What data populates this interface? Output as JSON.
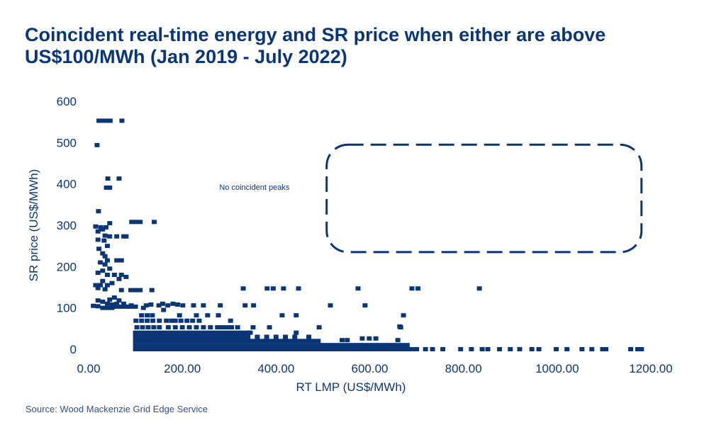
{
  "chart_data": {
    "type": "scatter",
    "title": "Coincident real-time energy and SR price when either are above US$100/MWh  (Jan 2019 - July 2022)",
    "xlabel": "RT LMP (US$/MWh)",
    "ylabel": "SR price (US$/MWh)",
    "xlim": [
      0,
      1200
    ],
    "ylim": [
      0,
      600
    ],
    "xticks": [
      "0.00",
      "200.00",
      "400.00",
      "600.00",
      "800.00",
      "1000.00",
      "1200.00"
    ],
    "xtick_values": [
      0,
      200,
      400,
      600,
      800,
      1000,
      1200
    ],
    "yticks": [
      "0",
      "100",
      "200",
      "300",
      "400",
      "500",
      "600"
    ],
    "ytick_values": [
      0,
      100,
      200,
      300,
      400,
      500,
      600
    ],
    "grid": false,
    "legend": "none",
    "marker_color": "#0a3678",
    "annotation": {
      "text": "No coincident peaks",
      "x": 285,
      "y": 393,
      "box_x": [
        508,
        1180
      ],
      "box_y": [
        235,
        495
      ],
      "box_style": "dashed-rounded"
    },
    "points": [
      [
        22,
        553
      ],
      [
        30,
        553
      ],
      [
        38,
        553
      ],
      [
        46,
        553
      ],
      [
        71,
        553
      ],
      [
        18,
        494
      ],
      [
        41,
        413
      ],
      [
        65,
        413
      ],
      [
        38,
        391
      ],
      [
        45,
        391
      ],
      [
        21,
        334
      ],
      [
        45,
        305
      ],
      [
        92,
        308
      ],
      [
        100,
        308
      ],
      [
        110,
        308
      ],
      [
        140,
        308
      ],
      [
        15,
        297
      ],
      [
        26,
        295
      ],
      [
        37,
        295
      ],
      [
        30,
        290
      ],
      [
        20,
        285
      ],
      [
        35,
        275
      ],
      [
        45,
        273
      ],
      [
        60,
        273
      ],
      [
        75,
        273
      ],
      [
        80,
        273
      ],
      [
        20,
        265
      ],
      [
        33,
        263
      ],
      [
        40,
        250
      ],
      [
        22,
        243
      ],
      [
        30,
        232
      ],
      [
        35,
        225
      ],
      [
        40,
        215
      ],
      [
        60,
        215
      ],
      [
        70,
        215
      ],
      [
        25,
        210
      ],
      [
        35,
        205
      ],
      [
        45,
        195
      ],
      [
        30,
        190
      ],
      [
        20,
        185
      ],
      [
        40,
        180
      ],
      [
        55,
        180
      ],
      [
        70,
        180
      ],
      [
        80,
        175
      ],
      [
        65,
        170
      ],
      [
        30,
        165
      ],
      [
        15,
        155
      ],
      [
        25,
        155
      ],
      [
        40,
        155
      ],
      [
        50,
        160
      ],
      [
        20,
        148
      ],
      [
        35,
        145
      ],
      [
        70,
        143
      ],
      [
        90,
        143
      ],
      [
        100,
        143
      ],
      [
        110,
        143
      ],
      [
        135,
        143
      ],
      [
        10,
        105
      ],
      [
        20,
        118
      ],
      [
        30,
        115
      ],
      [
        45,
        120
      ],
      [
        55,
        125
      ],
      [
        65,
        118
      ],
      [
        40,
        110
      ],
      [
        50,
        108
      ],
      [
        60,
        110
      ],
      [
        75,
        110
      ],
      [
        20,
        104
      ],
      [
        30,
        100
      ],
      [
        40,
        100
      ],
      [
        50,
        100
      ],
      [
        60,
        103
      ],
      [
        70,
        103
      ],
      [
        80,
        103
      ],
      [
        90,
        103
      ],
      [
        100,
        103
      ],
      [
        117,
        100
      ],
      [
        133,
        108
      ],
      [
        158,
        110
      ],
      [
        180,
        110
      ],
      [
        190,
        108
      ],
      [
        160,
        95
      ],
      [
        330,
        147
      ],
      [
        381,
        147
      ],
      [
        394,
        147
      ],
      [
        416,
        147
      ],
      [
        448,
        147
      ],
      [
        575,
        147
      ],
      [
        690,
        147
      ],
      [
        703,
        147
      ],
      [
        834,
        147
      ],
      [
        91,
        106
      ],
      [
        123,
        106
      ],
      [
        150,
        106
      ],
      [
        169,
        106
      ],
      [
        201,
        106
      ],
      [
        224,
        106
      ],
      [
        245,
        106
      ],
      [
        281,
        106
      ],
      [
        334,
        106
      ],
      [
        352,
        106
      ],
      [
        516,
        106
      ],
      [
        590,
        106
      ],
      [
        113,
        82
      ],
      [
        125,
        82
      ],
      [
        136,
        82
      ],
      [
        194,
        82
      ],
      [
        230,
        82
      ],
      [
        254,
        82
      ],
      [
        277,
        82
      ],
      [
        413,
        82
      ],
      [
        443,
        82
      ],
      [
        672,
        82
      ],
      [
        101,
        69
      ],
      [
        113,
        69
      ],
      [
        125,
        69
      ],
      [
        137,
        69
      ],
      [
        151,
        69
      ],
      [
        166,
        69
      ],
      [
        177,
        69
      ],
      [
        185,
        69
      ],
      [
        197,
        69
      ],
      [
        210,
        69
      ],
      [
        222,
        69
      ],
      [
        236,
        69
      ],
      [
        303,
        69
      ],
      [
        664,
        55
      ],
      [
        103,
        53
      ],
      [
        115,
        53
      ],
      [
        127,
        53
      ],
      [
        139,
        53
      ],
      [
        151,
        53
      ],
      [
        170,
        53
      ],
      [
        185,
        53
      ],
      [
        200,
        53
      ],
      [
        215,
        53
      ],
      [
        230,
        53
      ],
      [
        245,
        53
      ],
      [
        260,
        53
      ],
      [
        275,
        53
      ],
      [
        285,
        53
      ],
      [
        295,
        53
      ],
      [
        305,
        53
      ],
      [
        318,
        53
      ],
      [
        351,
        53
      ],
      [
        386,
        53
      ],
      [
        492,
        53
      ],
      [
        666,
        53
      ],
      [
        100,
        40
      ],
      [
        110,
        40
      ],
      [
        120,
        40
      ],
      [
        130,
        40
      ],
      [
        140,
        40
      ],
      [
        150,
        40
      ],
      [
        160,
        40
      ],
      [
        170,
        40
      ],
      [
        180,
        40
      ],
      [
        190,
        40
      ],
      [
        200,
        40
      ],
      [
        210,
        40
      ],
      [
        220,
        40
      ],
      [
        230,
        40
      ],
      [
        240,
        40
      ],
      [
        250,
        40
      ],
      [
        260,
        40
      ],
      [
        270,
        40
      ],
      [
        280,
        40
      ],
      [
        290,
        40
      ],
      [
        300,
        40
      ],
      [
        310,
        40
      ],
      [
        320,
        40
      ],
      [
        330,
        40
      ],
      [
        340,
        40
      ],
      [
        345,
        40
      ],
      [
        443,
        40
      ],
      [
        100,
        30
      ],
      [
        110,
        30
      ],
      [
        120,
        30
      ],
      [
        130,
        30
      ],
      [
        140,
        30
      ],
      [
        150,
        30
      ],
      [
        160,
        30
      ],
      [
        170,
        30
      ],
      [
        180,
        30
      ],
      [
        190,
        30
      ],
      [
        200,
        30
      ],
      [
        210,
        30
      ],
      [
        220,
        30
      ],
      [
        230,
        30
      ],
      [
        240,
        30
      ],
      [
        250,
        30
      ],
      [
        260,
        30
      ],
      [
        270,
        30
      ],
      [
        280,
        30
      ],
      [
        290,
        30
      ],
      [
        300,
        30
      ],
      [
        310,
        30
      ],
      [
        320,
        30
      ],
      [
        330,
        30
      ],
      [
        340,
        30
      ],
      [
        360,
        30
      ],
      [
        380,
        30
      ],
      [
        400,
        30
      ],
      [
        420,
        30
      ],
      [
        440,
        30
      ],
      [
        470,
        30
      ],
      [
        100,
        20
      ],
      [
        110,
        20
      ],
      [
        120,
        20
      ],
      [
        130,
        20
      ],
      [
        140,
        20
      ],
      [
        150,
        20
      ],
      [
        160,
        20
      ],
      [
        170,
        20
      ],
      [
        180,
        20
      ],
      [
        190,
        20
      ],
      [
        200,
        20
      ],
      [
        210,
        20
      ],
      [
        220,
        20
      ],
      [
        230,
        20
      ],
      [
        240,
        20
      ],
      [
        250,
        20
      ],
      [
        260,
        20
      ],
      [
        270,
        20
      ],
      [
        280,
        20
      ],
      [
        290,
        20
      ],
      [
        300,
        20
      ],
      [
        310,
        20
      ],
      [
        320,
        20
      ],
      [
        330,
        20
      ],
      [
        340,
        20
      ],
      [
        350,
        20
      ],
      [
        360,
        20
      ],
      [
        370,
        20
      ],
      [
        380,
        20
      ],
      [
        390,
        20
      ],
      [
        400,
        20
      ],
      [
        410,
        20
      ],
      [
        420,
        20
      ],
      [
        430,
        20
      ],
      [
        440,
        20
      ],
      [
        450,
        20
      ],
      [
        460,
        20
      ],
      [
        470,
        20
      ],
      [
        480,
        20
      ],
      [
        490,
        20
      ],
      [
        541,
        22
      ],
      [
        552,
        22
      ],
      [
        584,
        26
      ],
      [
        599,
        26
      ],
      [
        613,
        26
      ],
      [
        660,
        22
      ],
      [
        100,
        10
      ],
      [
        110,
        10
      ],
      [
        120,
        10
      ],
      [
        130,
        10
      ],
      [
        140,
        10
      ],
      [
        150,
        10
      ],
      [
        160,
        10
      ],
      [
        170,
        10
      ],
      [
        180,
        10
      ],
      [
        190,
        10
      ],
      [
        200,
        10
      ],
      [
        210,
        10
      ],
      [
        220,
        10
      ],
      [
        230,
        10
      ],
      [
        240,
        10
      ],
      [
        250,
        10
      ],
      [
        260,
        10
      ],
      [
        270,
        10
      ],
      [
        280,
        10
      ],
      [
        290,
        10
      ],
      [
        300,
        10
      ],
      [
        310,
        10
      ],
      [
        320,
        10
      ],
      [
        330,
        10
      ],
      [
        340,
        10
      ],
      [
        350,
        10
      ],
      [
        360,
        10
      ],
      [
        370,
        10
      ],
      [
        380,
        10
      ],
      [
        390,
        10
      ],
      [
        400,
        10
      ],
      [
        410,
        10
      ],
      [
        420,
        10
      ],
      [
        430,
        10
      ],
      [
        440,
        10
      ],
      [
        450,
        10
      ],
      [
        460,
        10
      ],
      [
        470,
        10
      ],
      [
        480,
        10
      ],
      [
        490,
        10
      ],
      [
        500,
        10
      ],
      [
        510,
        10
      ],
      [
        520,
        10
      ],
      [
        530,
        10
      ],
      [
        540,
        10
      ],
      [
        550,
        10
      ],
      [
        560,
        10
      ],
      [
        570,
        10
      ],
      [
        580,
        10
      ],
      [
        590,
        10
      ],
      [
        600,
        10
      ],
      [
        610,
        10
      ],
      [
        620,
        10
      ],
      [
        630,
        10
      ],
      [
        640,
        10
      ],
      [
        650,
        10
      ],
      [
        660,
        10
      ],
      [
        670,
        10
      ],
      [
        680,
        10
      ],
      [
        100,
        0
      ],
      [
        110,
        0
      ],
      [
        120,
        0
      ],
      [
        130,
        0
      ],
      [
        140,
        0
      ],
      [
        150,
        0
      ],
      [
        160,
        0
      ],
      [
        170,
        0
      ],
      [
        180,
        0
      ],
      [
        190,
        0
      ],
      [
        200,
        0
      ],
      [
        210,
        0
      ],
      [
        220,
        0
      ],
      [
        230,
        0
      ],
      [
        240,
        0
      ],
      [
        250,
        0
      ],
      [
        260,
        0
      ],
      [
        270,
        0
      ],
      [
        280,
        0
      ],
      [
        290,
        0
      ],
      [
        300,
        0
      ],
      [
        310,
        0
      ],
      [
        320,
        0
      ],
      [
        330,
        0
      ],
      [
        340,
        0
      ],
      [
        350,
        0
      ],
      [
        360,
        0
      ],
      [
        370,
        0
      ],
      [
        380,
        0
      ],
      [
        390,
        0
      ],
      [
        400,
        0
      ],
      [
        410,
        0
      ],
      [
        420,
        0
      ],
      [
        430,
        0
      ],
      [
        440,
        0
      ],
      [
        450,
        0
      ],
      [
        460,
        0
      ],
      [
        470,
        0
      ],
      [
        480,
        0
      ],
      [
        490,
        0
      ],
      [
        500,
        0
      ],
      [
        510,
        0
      ],
      [
        520,
        0
      ],
      [
        530,
        0
      ],
      [
        540,
        0
      ],
      [
        550,
        0
      ],
      [
        560,
        0
      ],
      [
        570,
        0
      ],
      [
        580,
        0
      ],
      [
        590,
        0
      ],
      [
        600,
        0
      ],
      [
        610,
        0
      ],
      [
        620,
        0
      ],
      [
        630,
        0
      ],
      [
        640,
        0
      ],
      [
        650,
        0
      ],
      [
        660,
        0
      ],
      [
        670,
        0
      ],
      [
        680,
        0
      ],
      [
        690,
        0
      ],
      [
        700,
        0
      ],
      [
        719,
        0
      ],
      [
        734,
        0
      ],
      [
        756,
        0
      ],
      [
        794,
        0
      ],
      [
        817,
        0
      ],
      [
        840,
        0
      ],
      [
        852,
        0
      ],
      [
        877,
        0
      ],
      [
        900,
        0
      ],
      [
        920,
        0
      ],
      [
        946,
        0
      ],
      [
        961,
        0
      ],
      [
        998,
        0
      ],
      [
        1021,
        0
      ],
      [
        1053,
        0
      ],
      [
        1074,
        0
      ],
      [
        1097,
        0
      ],
      [
        1104,
        0
      ],
      [
        1157,
        0
      ],
      [
        1172,
        0
      ],
      [
        1180,
        0
      ]
    ]
  },
  "source": "Source: Wood Mackenzie Grid Edge Service"
}
